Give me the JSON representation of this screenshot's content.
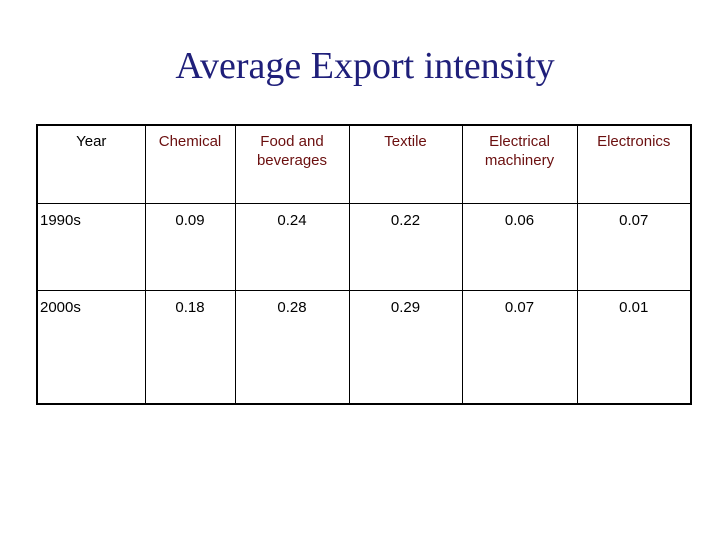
{
  "slide": {
    "title": "Average Export intensity"
  },
  "table": {
    "columns": [
      "Year",
      "Chemical",
      "Food and beverages",
      "Textile",
      "Electrical machinery",
      "Electronics"
    ],
    "rows": [
      {
        "year": "1990s",
        "values": [
          "0.09",
          "0.24",
          "0.22",
          "0.06",
          "0.07"
        ]
      },
      {
        "year": "2000s",
        "values": [
          "0.18",
          "0.28",
          "0.29",
          "0.07",
          "0.01"
        ]
      }
    ]
  },
  "colors": {
    "title": "#1f1f7a",
    "header_text": "#6b0f0f",
    "body_text": "#000000",
    "border": "#000000"
  }
}
